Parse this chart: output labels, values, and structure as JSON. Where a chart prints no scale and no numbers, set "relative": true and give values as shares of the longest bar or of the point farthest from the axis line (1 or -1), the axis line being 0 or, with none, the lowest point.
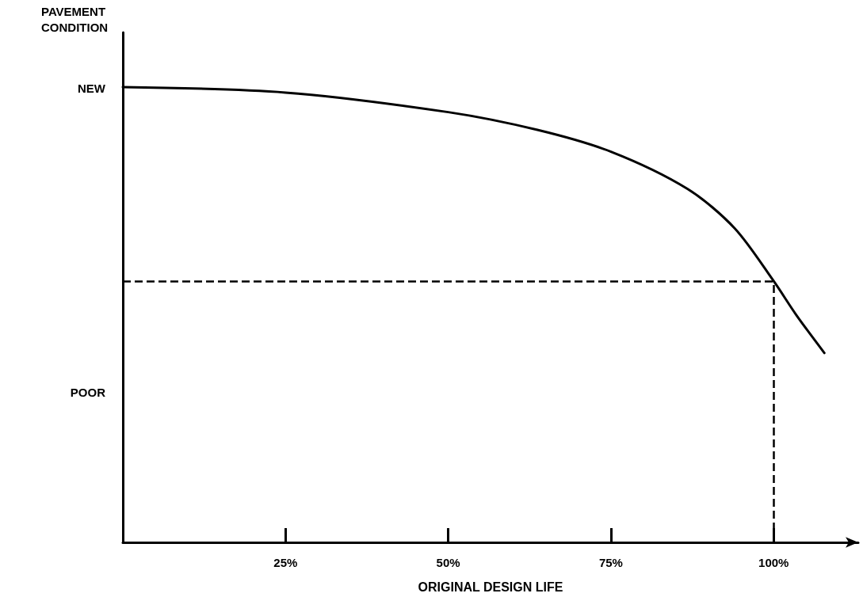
{
  "chart_data": {
    "type": "line",
    "relative": true,
    "xlabel": "ORIGINAL DESIGN LIFE",
    "ylabel": "PAVEMENT\nCONDITION",
    "x": [
      0,
      25,
      50,
      63.7,
      75,
      86.8,
      94,
      100,
      103.5,
      107.8
    ],
    "values": [
      1,
      0.988,
      0.945,
      0.906,
      0.858,
      0.776,
      0.69,
      0.574,
      0.499,
      0.416
    ],
    "color": "#000000",
    "marker": "none",
    "line_style": "solid",
    "grid": false,
    "xlim": [
      0,
      113
    ],
    "xticks": [
      {
        "value": 25,
        "label": "25%"
      },
      {
        "value": 50,
        "label": "50%"
      },
      {
        "value": 75,
        "label": "75%"
      },
      {
        "value": 100,
        "label": "100%"
      }
    ],
    "ref_lines": [
      {
        "axis": "y",
        "value": 0.574,
        "line_style": "dashed",
        "color": "#000000"
      },
      {
        "axis": "x",
        "value": 100,
        "line_style": "dashed",
        "color": "#000000"
      }
    ],
    "annotations": [
      "NEW",
      "POOR"
    ]
  }
}
